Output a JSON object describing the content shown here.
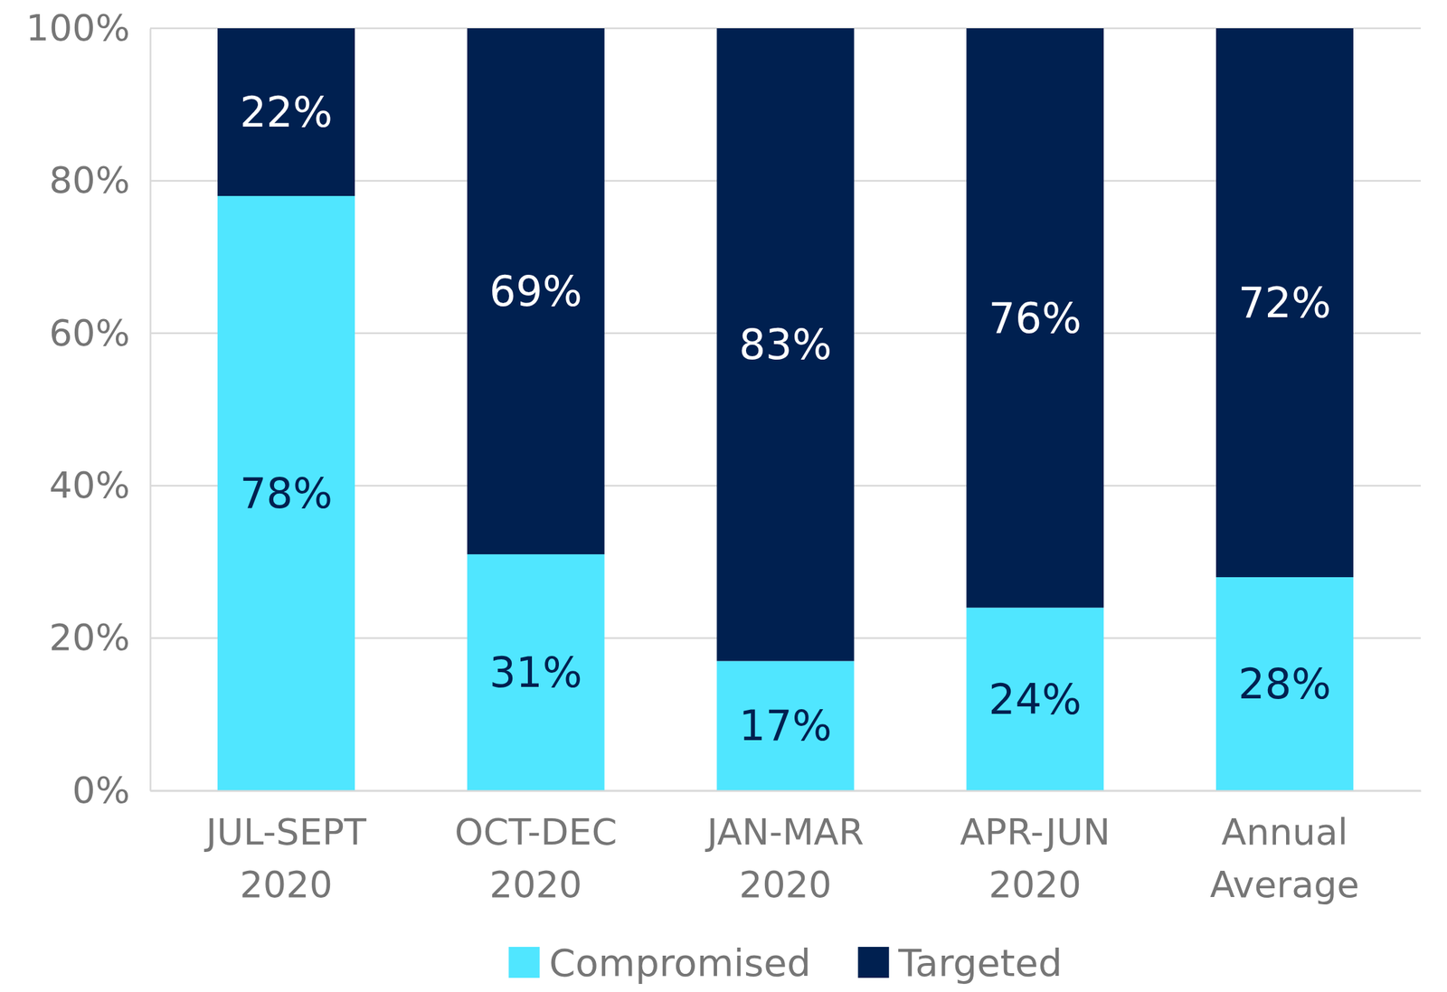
{
  "chart_data": {
    "type": "bar",
    "stacked": true,
    "categories": [
      "JUL-SEPT 2020",
      "OCT-DEC 2020",
      "JAN-MAR 2020",
      "APR-JUN 2020",
      "Annual Average"
    ],
    "series": [
      {
        "name": "Compromised",
        "color": "#50E6FF",
        "values": [
          78,
          31,
          17,
          24,
          28
        ],
        "value_labels": [
          "78%",
          "31%",
          "17%",
          "24%",
          "28%"
        ]
      },
      {
        "name": "Targeted",
        "color": "#002050",
        "values": [
          22,
          69,
          83,
          76,
          72
        ],
        "value_labels": [
          "22%",
          "69%",
          "83%",
          "76%",
          "72%"
        ]
      }
    ],
    "ylim": [
      0,
      100
    ],
    "yticks": [
      {
        "value": 0,
        "label": "0%"
      },
      {
        "value": 20,
        "label": "20%"
      },
      {
        "value": 40,
        "label": "40%"
      },
      {
        "value": 60,
        "label": "60%"
      },
      {
        "value": 80,
        "label": "80%"
      },
      {
        "value": 100,
        "label": "100%"
      }
    ],
    "grid": true,
    "data_labels": true,
    "legend": "bottom"
  }
}
